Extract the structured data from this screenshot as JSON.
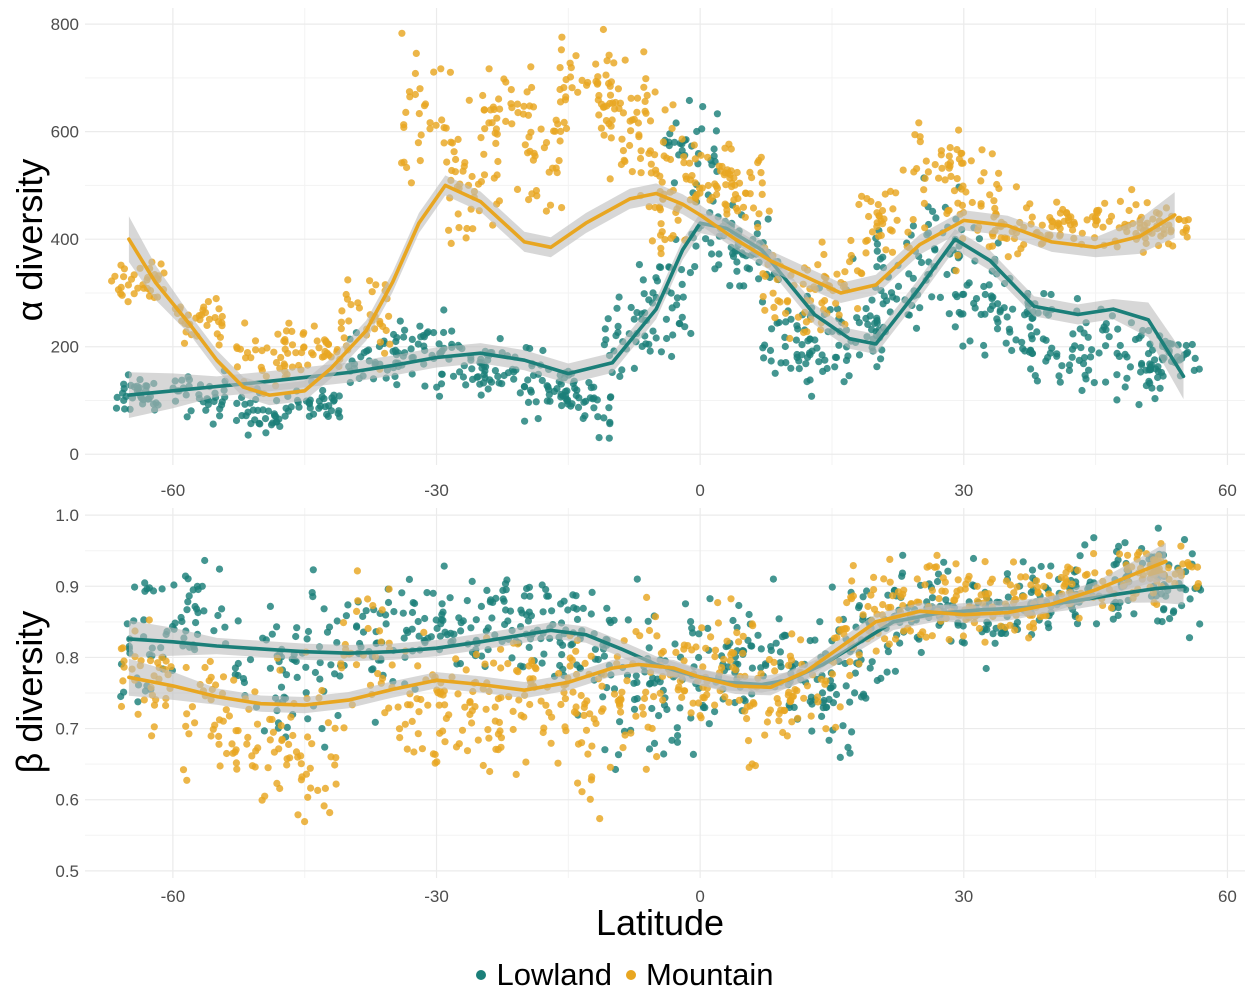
{
  "legend": {
    "items": [
      {
        "label": "Lowland",
        "color": "#1b7f79"
      },
      {
        "label": "Mountain",
        "color": "#e8a621"
      }
    ]
  },
  "colors": {
    "lowland": "#1b7f79",
    "mountain": "#e8a621",
    "ribbon": "#bdbdbd",
    "grid": "#ebebeb"
  },
  "chart_data": [
    {
      "type": "scatter",
      "panel": "top",
      "ylabel": "α diversity",
      "xlabel": "",
      "xlim": [
        -70,
        62
      ],
      "ylim": [
        -20,
        830
      ],
      "xticks": [
        -60,
        -30,
        0,
        30,
        60
      ],
      "yticks": [
        0,
        200,
        400,
        600,
        800
      ],
      "grid": true,
      "series": [
        {
          "name": "Lowland",
          "smooth": [
            [
              -65,
              110
            ],
            [
              -60,
              118
            ],
            [
              -55,
              126
            ],
            [
              -50,
              134
            ],
            [
              -45,
              143
            ],
            [
              -40,
              152
            ],
            [
              -35,
              165
            ],
            [
              -30,
              180
            ],
            [
              -25,
              188
            ],
            [
              -20,
              175
            ],
            [
              -15,
              150
            ],
            [
              -10,
              170
            ],
            [
              -5,
              270
            ],
            [
              -2,
              380
            ],
            [
              0,
              430
            ],
            [
              3,
              420
            ],
            [
              7,
              380
            ],
            [
              10,
              320
            ],
            [
              13,
              260
            ],
            [
              17,
              215
            ],
            [
              20,
              205
            ],
            [
              25,
              310
            ],
            [
              29,
              400
            ],
            [
              33,
              360
            ],
            [
              38,
              275
            ],
            [
              43,
              260
            ],
            [
              47,
              270
            ],
            [
              51,
              250
            ],
            [
              55,
              145
            ]
          ],
          "cloud": [
            [
              -64,
              110,
              30
            ],
            [
              -57,
              105,
              40
            ],
            [
              -50,
              80,
              35
            ],
            [
              -44,
              90,
              35
            ],
            [
              -37,
              180,
              40
            ],
            [
              -32,
              200,
              60
            ],
            [
              -27,
              170,
              50
            ],
            [
              -22,
              160,
              60
            ],
            [
              -17,
              120,
              50
            ],
            [
              -13,
              100,
              50
            ],
            [
              -8,
              220,
              80
            ],
            [
              -4,
              300,
              100
            ],
            [
              -1,
              560,
              80
            ],
            [
              2,
              400,
              60
            ],
            [
              6,
              360,
              60
            ],
            [
              10,
              200,
              100
            ],
            [
              14,
              200,
              80
            ],
            [
              18,
              240,
              90
            ],
            [
              22,
              320,
              90
            ],
            [
              27,
              380,
              110
            ],
            [
              31,
              300,
              90
            ],
            [
              35,
              260,
              80
            ],
            [
              40,
              220,
              80
            ],
            [
              45,
              190,
              70
            ],
            [
              50,
              170,
              60
            ],
            [
              54,
              190,
              40
            ]
          ]
        },
        {
          "name": "Mountain",
          "smooth": [
            [
              -65,
              400
            ],
            [
              -62,
              320
            ],
            [
              -58,
              240
            ],
            [
              -55,
              175
            ],
            [
              -52,
              125
            ],
            [
              -49,
              110
            ],
            [
              -45,
              118
            ],
            [
              -42,
              160
            ],
            [
              -38,
              230
            ],
            [
              -35,
              320
            ],
            [
              -32,
              430
            ],
            [
              -29,
              500
            ],
            [
              -25,
              470
            ],
            [
              -20,
              395
            ],
            [
              -17,
              385
            ],
            [
              -13,
              430
            ],
            [
              -8,
              475
            ],
            [
              -5,
              485
            ],
            [
              -2,
              465
            ],
            [
              0,
              445
            ],
            [
              4,
              400
            ],
            [
              8,
              360
            ],
            [
              12,
              330
            ],
            [
              16,
              300
            ],
            [
              20,
              315
            ],
            [
              25,
              390
            ],
            [
              30,
              435
            ],
            [
              35,
              425
            ],
            [
              40,
              395
            ],
            [
              45,
              385
            ],
            [
              50,
              405
            ],
            [
              54,
              445
            ]
          ],
          "cloud": [
            [
              -64,
              320,
              40
            ],
            [
              -57,
              250,
              50
            ],
            [
              -50,
              180,
              60
            ],
            [
              -44,
              200,
              50
            ],
            [
              -38,
              250,
              80
            ],
            [
              -31,
              620,
              130
            ],
            [
              -26,
              520,
              120
            ],
            [
              -22,
              600,
              120
            ],
            [
              -18,
              560,
              100
            ],
            [
              -13,
              700,
              90
            ],
            [
              -9,
              650,
              100
            ],
            [
              -6,
              560,
              100
            ],
            [
              -3,
              480,
              80
            ],
            [
              1,
              520,
              60
            ],
            [
              5,
              500,
              60
            ],
            [
              10,
              300,
              80
            ],
            [
              16,
              310,
              80
            ],
            [
              21,
              420,
              80
            ],
            [
              27,
              520,
              100
            ],
            [
              31,
              470,
              90
            ],
            [
              36,
              420,
              50
            ],
            [
              42,
              420,
              40
            ],
            [
              48,
              430,
              40
            ],
            [
              53,
              425,
              30
            ]
          ]
        }
      ]
    },
    {
      "type": "scatter",
      "panel": "bottom",
      "ylabel": "β diversity",
      "xlabel": "Latitude",
      "xlim": [
        -70,
        62
      ],
      "ylim": [
        0.49,
        1.01
      ],
      "xticks": [
        -60,
        -30,
        0,
        30,
        60
      ],
      "yticks": [
        0.5,
        0.6,
        0.7,
        0.8,
        0.9,
        1.0
      ],
      "grid": true,
      "series": [
        {
          "name": "Lowland",
          "smooth": [
            [
              -65,
              0.826
            ],
            [
              -60,
              0.822
            ],
            [
              -55,
              0.816
            ],
            [
              -50,
              0.812
            ],
            [
              -45,
              0.808
            ],
            [
              -40,
              0.806
            ],
            [
              -35,
              0.808
            ],
            [
              -30,
              0.813
            ],
            [
              -25,
              0.822
            ],
            [
              -20,
              0.832
            ],
            [
              -17,
              0.838
            ],
            [
              -13,
              0.832
            ],
            [
              -9,
              0.812
            ],
            [
              -5,
              0.79
            ],
            [
              -1,
              0.775
            ],
            [
              3,
              0.765
            ],
            [
              7,
              0.762
            ],
            [
              10,
              0.768
            ],
            [
              14,
              0.79
            ],
            [
              18,
              0.82
            ],
            [
              22,
              0.85
            ],
            [
              27,
              0.862
            ],
            [
              32,
              0.867
            ],
            [
              37,
              0.87
            ],
            [
              42,
              0.878
            ],
            [
              47,
              0.888
            ],
            [
              52,
              0.897
            ],
            [
              55,
              0.9
            ]
          ],
          "cloud": [
            [
              -63,
              0.82,
              0.09
            ],
            [
              -57,
              0.86,
              0.07
            ],
            [
              -50,
              0.78,
              0.1
            ],
            [
              -44,
              0.8,
              0.1
            ],
            [
              -38,
              0.82,
              0.08
            ],
            [
              -32,
              0.84,
              0.07
            ],
            [
              -27,
              0.84,
              0.06
            ],
            [
              -22,
              0.85,
              0.06
            ],
            [
              -17,
              0.86,
              0.07
            ],
            [
              -13,
              0.82,
              0.07
            ],
            [
              -8,
              0.76,
              0.1
            ],
            [
              -3,
              0.75,
              0.09
            ],
            [
              2,
              0.8,
              0.08
            ],
            [
              7,
              0.8,
              0.07
            ],
            [
              12,
              0.76,
              0.08
            ],
            [
              16,
              0.78,
              0.1
            ],
            [
              20,
              0.84,
              0.08
            ],
            [
              25,
              0.87,
              0.06
            ],
            [
              30,
              0.87,
              0.06
            ],
            [
              35,
              0.86,
              0.06
            ],
            [
              40,
              0.88,
              0.06
            ],
            [
              45,
              0.9,
              0.05
            ],
            [
              50,
              0.91,
              0.05
            ],
            [
              54,
              0.9,
              0.06
            ]
          ]
        },
        {
          "name": "Mountain",
          "smooth": [
            [
              -65,
              0.772
            ],
            [
              -60,
              0.76
            ],
            [
              -55,
              0.745
            ],
            [
              -50,
              0.735
            ],
            [
              -45,
              0.733
            ],
            [
              -40,
              0.74
            ],
            [
              -35,
              0.755
            ],
            [
              -30,
              0.768
            ],
            [
              -25,
              0.762
            ],
            [
              -20,
              0.754
            ],
            [
              -15,
              0.765
            ],
            [
              -10,
              0.785
            ],
            [
              -7,
              0.79
            ],
            [
              -3,
              0.785
            ],
            [
              0,
              0.772
            ],
            [
              4,
              0.76
            ],
            [
              8,
              0.758
            ],
            [
              12,
              0.78
            ],
            [
              16,
              0.815
            ],
            [
              20,
              0.85
            ],
            [
              25,
              0.865
            ],
            [
              30,
              0.86
            ],
            [
              35,
              0.863
            ],
            [
              40,
              0.875
            ],
            [
              45,
              0.895
            ],
            [
              50,
              0.92
            ],
            [
              53,
              0.935
            ]
          ],
          "cloud": [
            [
              -63,
              0.77,
              0.07
            ],
            [
              -56,
              0.72,
              0.08
            ],
            [
              -50,
              0.68,
              0.08
            ],
            [
              -44,
              0.66,
              0.09
            ],
            [
              -38,
              0.8,
              0.1
            ],
            [
              -32,
              0.73,
              0.09
            ],
            [
              -27,
              0.75,
              0.08
            ],
            [
              -22,
              0.74,
              0.08
            ],
            [
              -17,
              0.74,
              0.08
            ],
            [
              -12,
              0.72,
              0.1
            ],
            [
              -7,
              0.76,
              0.1
            ],
            [
              -2,
              0.78,
              0.07
            ],
            [
              3,
              0.8,
              0.07
            ],
            [
              8,
              0.72,
              0.08
            ],
            [
              13,
              0.76,
              0.08
            ],
            [
              18,
              0.85,
              0.06
            ],
            [
              23,
              0.87,
              0.05
            ],
            [
              28,
              0.88,
              0.05
            ],
            [
              33,
              0.88,
              0.05
            ],
            [
              38,
              0.88,
              0.05
            ],
            [
              44,
              0.9,
              0.04
            ],
            [
              50,
              0.92,
              0.04
            ],
            [
              54,
              0.92,
              0.03
            ]
          ]
        }
      ]
    }
  ]
}
